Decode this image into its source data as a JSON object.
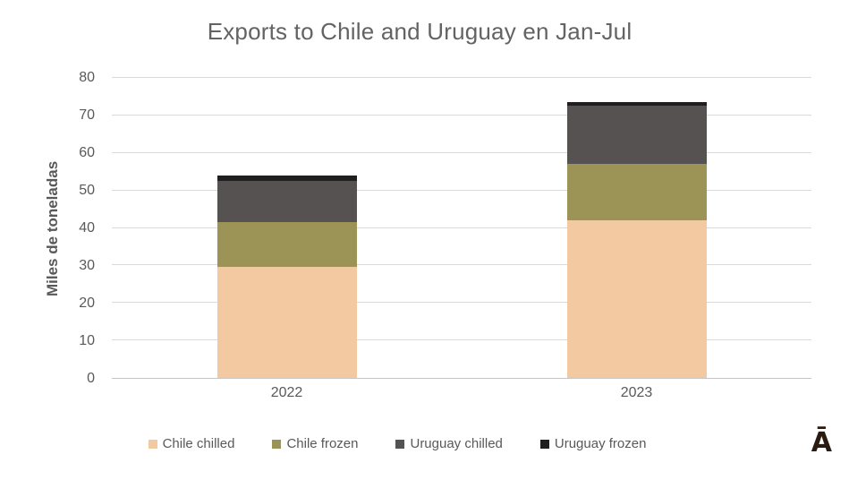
{
  "logo_glyph": "Ā",
  "colors": {
    "title_text": "#636363",
    "axis_text": "#595959",
    "gridline": "#d9d9d9",
    "axis_line": "#c6c6c6",
    "logo": "#2b1a10"
  },
  "chart_data": {
    "type": "bar",
    "stacked": true,
    "title": "Exports to Chile and Uruguay en Jan-Jul",
    "xlabel": "",
    "ylabel": "Miles de toneladas",
    "categories": [
      "2022",
      "2023"
    ],
    "series": [
      {
        "name": "Chile chilled",
        "color": "#f2c9a1",
        "values": [
          29.5,
          42
        ]
      },
      {
        "name": "Chile frozen",
        "color": "#9b9456",
        "values": [
          12,
          15
        ]
      },
      {
        "name": "Uruguay chilled",
        "color": "#565251",
        "values": [
          11,
          15.5
        ]
      },
      {
        "name": "Uruguay frozen",
        "color": "#1f1f1f",
        "values": [
          1.5,
          1
        ]
      }
    ],
    "totals": [
      54,
      73.5
    ],
    "ylim": [
      0,
      80
    ],
    "yticks": [
      0,
      10,
      20,
      30,
      40,
      50,
      60,
      70,
      80
    ],
    "grid": true,
    "legend_position": "bottom"
  }
}
